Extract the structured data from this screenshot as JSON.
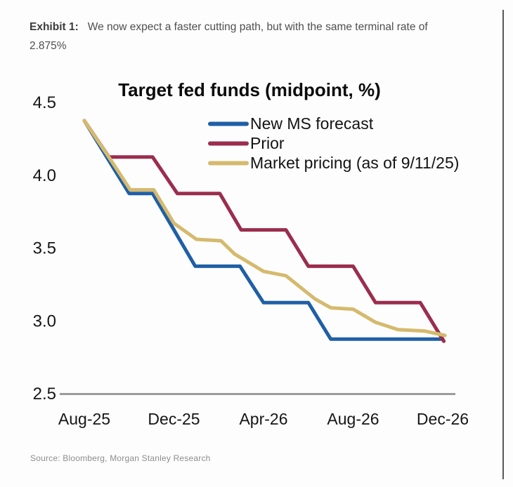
{
  "header": {
    "label": "Exhibit 1:",
    "caption": "We now expect a faster cutting path, but with the same terminal rate of 2.875%"
  },
  "source": "Source: Bloomberg, Morgan Stanley Research",
  "chart_data": {
    "type": "line",
    "title": "Target fed funds (midpoint, %)",
    "xlabel": "",
    "ylabel": "",
    "x_unit": "months since Aug-2025",
    "xlim": [
      0,
      16
    ],
    "ylim": [
      2.5,
      4.5
    ],
    "grid": false,
    "legend_position": "top-center",
    "axis_color": "#9b9b9b",
    "x_ticks": [
      {
        "pos": 0,
        "label": "Aug-25"
      },
      {
        "pos": 4,
        "label": "Dec-25"
      },
      {
        "pos": 8,
        "label": "Apr-26"
      },
      {
        "pos": 12,
        "label": "Aug-26"
      },
      {
        "pos": 16,
        "label": "Dec-26"
      }
    ],
    "y_ticks": [
      {
        "value": 4.5,
        "label": "4.5"
      },
      {
        "value": 4.0,
        "label": "4.0"
      },
      {
        "value": 3.5,
        "label": "3.5"
      },
      {
        "value": 3.0,
        "label": "3.0"
      },
      {
        "value": 2.5,
        "label": "2.5"
      }
    ],
    "series": [
      {
        "name": "New MS forecast",
        "color": "#1f5fa6",
        "points": [
          [
            0,
            4.375
          ],
          [
            2.0,
            3.875
          ],
          [
            3.05,
            3.875
          ],
          [
            4.95,
            3.375
          ],
          [
            6.95,
            3.375
          ],
          [
            8.0,
            3.125
          ],
          [
            10.0,
            3.125
          ],
          [
            11.0,
            2.875
          ],
          [
            16,
            2.875
          ]
        ]
      },
      {
        "name": "Prior",
        "color": "#9b2d4d",
        "points": [
          [
            0,
            4.375
          ],
          [
            1.1,
            4.125
          ],
          [
            3.05,
            4.125
          ],
          [
            4.15,
            3.875
          ],
          [
            6.05,
            3.875
          ],
          [
            7.0,
            3.625
          ],
          [
            9.0,
            3.625
          ],
          [
            10.0,
            3.375
          ],
          [
            12.0,
            3.375
          ],
          [
            13.0,
            3.125
          ],
          [
            15.0,
            3.125
          ],
          [
            16.05,
            2.86
          ]
        ]
      },
      {
        "name": "Market pricing (as of 9/11/25)",
        "color": "#d5ba6e",
        "points": [
          [
            0,
            4.375
          ],
          [
            1.2,
            4.1
          ],
          [
            2.05,
            3.9
          ],
          [
            3.1,
            3.9
          ],
          [
            4.0,
            3.67
          ],
          [
            5.0,
            3.56
          ],
          [
            6.1,
            3.55
          ],
          [
            6.7,
            3.46
          ],
          [
            8.0,
            3.34
          ],
          [
            9.0,
            3.31
          ],
          [
            10.3,
            3.15
          ],
          [
            11.0,
            3.09
          ],
          [
            12.0,
            3.08
          ],
          [
            13.0,
            2.99
          ],
          [
            14.0,
            2.94
          ],
          [
            15.2,
            2.93
          ],
          [
            16.1,
            2.9
          ]
        ]
      }
    ]
  }
}
